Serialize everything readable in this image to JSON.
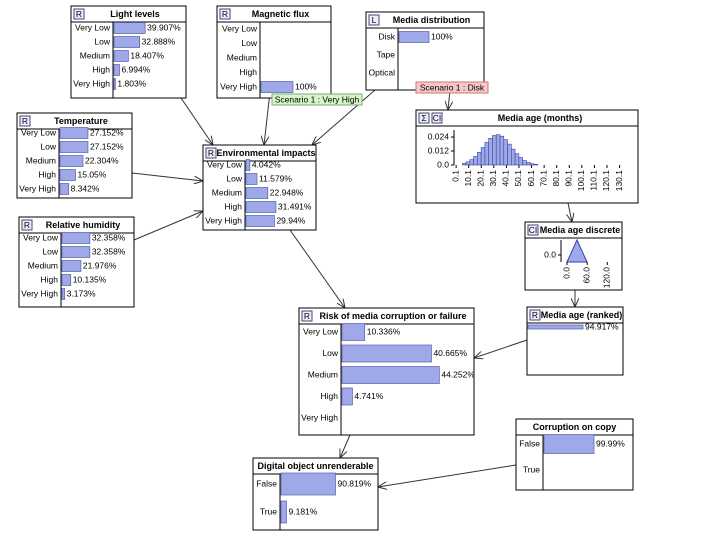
{
  "nodes": [
    {
      "title": "Light levels",
      "badges": [
        "R"
      ],
      "states": [
        "Very Low",
        "Low",
        "Medium",
        "High",
        "Very High"
      ],
      "values": [
        39.907,
        32.888,
        18.407,
        6.994,
        1.803
      ],
      "value_labels": [
        "39.907%",
        "32.888%",
        "18.407%",
        "6.994%",
        "1.803%"
      ]
    },
    {
      "title": "Magnetic flux",
      "badges": [
        "R"
      ],
      "states": [
        "Very Low",
        "Low",
        "Medium",
        "High",
        "Very High"
      ],
      "values": [
        0,
        0,
        0,
        0,
        100
      ],
      "value_labels": [
        null,
        null,
        null,
        null,
        "100%"
      ]
    },
    {
      "title": "Media distribution",
      "badges": [
        "L"
      ],
      "states": [
        "Disk",
        "Tape",
        "Optical"
      ],
      "values": [
        100,
        0,
        0
      ],
      "value_labels": [
        "100%",
        null,
        null
      ]
    },
    {
      "title": "Temperature",
      "badges": [
        "R"
      ],
      "states": [
        "Very Low",
        "Low",
        "Medium",
        "High",
        "Very High"
      ],
      "values": [
        27.152,
        27.152,
        22.304,
        15.05,
        8.342
      ],
      "value_labels": [
        "27.152%",
        "27.152%",
        "22.304%",
        "15.05%",
        "8.342%"
      ]
    },
    {
      "title": "Relative humidity",
      "badges": [
        "R"
      ],
      "states": [
        "Very Low",
        "Low",
        "Medium",
        "High",
        "Very High"
      ],
      "values": [
        32.358,
        32.358,
        21.976,
        10.135,
        3.173
      ],
      "value_labels": [
        "32.358%",
        "32.358%",
        "21.976%",
        "10.135%",
        "3.173%"
      ]
    },
    {
      "title": "Environmental impacts",
      "badges": [
        "R"
      ],
      "states": [
        "Very Low",
        "Low",
        "Medium",
        "High",
        "Very High"
      ],
      "values": [
        4.042,
        11.579,
        22.948,
        31.491,
        29.94
      ],
      "value_labels": [
        "4.042%",
        "11.579%",
        "22.948%",
        "31.491%",
        "29.94%"
      ]
    },
    {
      "title": "Media age (months)",
      "badges": [
        "Σ",
        "CI"
      ],
      "chart": {
        "xlim": [
          0,
          140
        ],
        "ylim": [
          0,
          0.03
        ],
        "xticks": [
          0.1,
          10.1,
          20.1,
          30.1,
          40.1,
          50.1,
          60.1,
          70.1,
          80.1,
          90.1,
          100.1,
          110.1,
          120.1,
          130.1
        ],
        "yticks": [
          0.024,
          0.012,
          {
            "value": 0,
            "label": "0.0"
          }
        ],
        "bins": [
          5,
          8,
          11,
          14,
          17,
          20,
          23,
          26,
          29,
          32,
          35,
          38,
          41,
          44,
          47,
          50,
          53,
          56,
          59,
          62,
          65
        ],
        "values": [
          0.0014,
          0.0027,
          0.0046,
          0.0073,
          0.0109,
          0.015,
          0.0193,
          0.0229,
          0.0253,
          0.026,
          0.0247,
          0.0218,
          0.0179,
          0.0136,
          0.0097,
          0.0064,
          0.0038,
          0.0022,
          0.0011,
          0.0006
        ]
      }
    },
    {
      "title": "Media age discrete",
      "badges": [
        "CI"
      ],
      "chart": {
        "xlim": [
          0,
          140
        ],
        "xticks": [
          {
            "value": 0,
            "label": "0.0"
          },
          {
            "value": 60,
            "label": "60.0"
          },
          {
            "value": 120,
            "label": "120.0"
          }
        ],
        "yticks": [
          {
            "value": 0,
            "label": "0.0"
          }
        ]
      }
    },
    {
      "title": "Media age (ranked)",
      "badges": [
        "R"
      ],
      "values": [
        94.917
      ],
      "value_labels": [
        "94.917%"
      ]
    },
    {
      "title": "Risk of media corruption or failure",
      "badges": [
        "R"
      ],
      "states": [
        "Very Low",
        "Low",
        "Medium",
        "High",
        "Very High"
      ],
      "values": [
        10.336,
        40.665,
        44.252,
        4.741,
        0
      ],
      "value_labels": [
        "10.336%",
        "40.665%",
        "44.252%",
        "4.741%",
        null
      ]
    },
    {
      "title": "Corruption on copy",
      "badges": [],
      "states": [
        "False",
        "True"
      ],
      "values": [
        99.99,
        0
      ],
      "value_labels": [
        "99.99%",
        null
      ]
    },
    {
      "title": "Digital object unrenderable",
      "badges": [],
      "states": [
        "False",
        "True"
      ],
      "values": [
        90.819,
        9.181
      ],
      "value_labels": [
        "90.819%",
        "9.181%"
      ]
    }
  ],
  "scenarios": [
    "Scenario 1 : Very High",
    "Scenario 1 : Disk"
  ]
}
